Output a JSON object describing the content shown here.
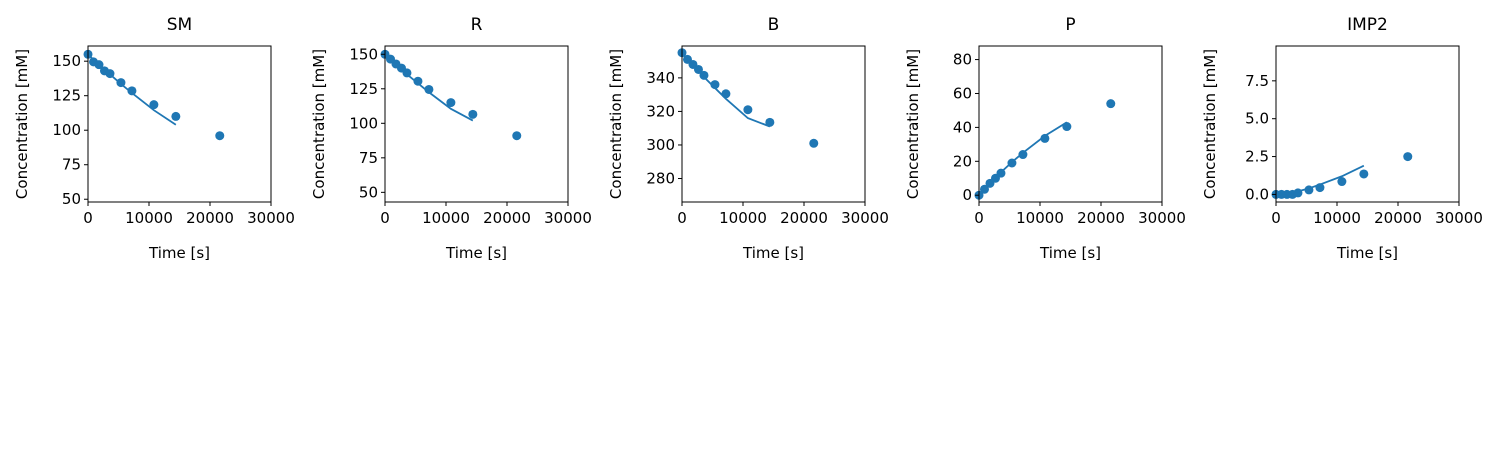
{
  "chart_data": [
    {
      "type": "scatter",
      "title": "SM",
      "xlabel": "Time [s]",
      "ylabel": "Concentration [mM]",
      "xlim": [
        0,
        30000
      ],
      "ylim": [
        48,
        161
      ],
      "xticks": [
        0,
        10000,
        20000,
        30000
      ],
      "yticks": [
        50,
        75,
        100,
        125,
        150
      ],
      "grid": false,
      "series": [
        {
          "kind": "points",
          "color": "#1f77b4",
          "x": [
            0,
            900,
            1800,
            2700,
            3600,
            5400,
            7200,
            10800,
            14400,
            21600
          ],
          "y": [
            155,
            149.5,
            147.5,
            143,
            141,
            134.5,
            128.5,
            118.5,
            110,
            96
          ]
        },
        {
          "kind": "line",
          "color": "#1f77b4",
          "x": [
            0,
            900,
            1800,
            2700,
            3600,
            5400,
            7200,
            10800,
            14400
          ],
          "y": [
            155,
            151,
            147.5,
            144,
            140.5,
            133.5,
            127,
            114.5,
            104
          ]
        }
      ]
    },
    {
      "type": "scatter",
      "title": "R",
      "xlabel": "Time [s]",
      "ylabel": "Concentration [mM]",
      "xlim": [
        0,
        30000
      ],
      "ylim": [
        43,
        156
      ],
      "xticks": [
        0,
        10000,
        20000,
        30000
      ],
      "yticks": [
        50,
        75,
        100,
        125,
        150
      ],
      "grid": false,
      "series": [
        {
          "kind": "points",
          "color": "#1f77b4",
          "x": [
            0,
            900,
            1800,
            2700,
            3600,
            5400,
            7200,
            10800,
            14400,
            21600
          ],
          "y": [
            150,
            146.5,
            143,
            140,
            136.5,
            130.5,
            124.5,
            115,
            106.5,
            91
          ]
        },
        {
          "kind": "line",
          "color": "#1f77b4",
          "x": [
            0,
            900,
            1800,
            2700,
            3600,
            5400,
            7200,
            10800,
            14400
          ],
          "y": [
            150,
            146,
            142.5,
            139,
            135.5,
            129,
            122.5,
            110.5,
            102
          ]
        }
      ]
    },
    {
      "type": "scatter",
      "title": "B",
      "xlabel": "Time [s]",
      "ylabel": "Concentration [mM]",
      "xlim": [
        0,
        30000
      ],
      "ylim": [
        266,
        359
      ],
      "xticks": [
        0,
        10000,
        20000,
        30000
      ],
      "yticks": [
        280,
        300,
        320,
        340
      ],
      "grid": false,
      "series": [
        {
          "kind": "points",
          "color": "#1f77b4",
          "x": [
            0,
            900,
            1800,
            2700,
            3600,
            5400,
            7200,
            10800,
            14400,
            21600
          ],
          "y": [
            355,
            351,
            348,
            345,
            341.5,
            336,
            330.5,
            321,
            313.5,
            301
          ]
        },
        {
          "kind": "line",
          "color": "#1f77b4",
          "x": [
            0,
            900,
            1800,
            2700,
            3600,
            5400,
            7200,
            10800,
            14400
          ],
          "y": [
            355,
            351,
            347.5,
            344,
            340.5,
            334,
            327.5,
            316,
            311
          ]
        }
      ]
    },
    {
      "type": "scatter",
      "title": "P",
      "xlabel": "Time [s]",
      "ylabel": "Concentration [mM]",
      "xlim": [
        0,
        30000
      ],
      "ylim": [
        -4,
        88
      ],
      "xticks": [
        0,
        10000,
        20000,
        30000
      ],
      "yticks": [
        0,
        20,
        40,
        60,
        80
      ],
      "grid": false,
      "series": [
        {
          "kind": "points",
          "color": "#1f77b4",
          "x": [
            0,
            900,
            1800,
            2700,
            3600,
            5400,
            7200,
            10800,
            14400,
            21600
          ],
          "y": [
            0,
            3.5,
            7,
            10,
            13,
            19,
            24,
            33.5,
            40.5,
            54
          ]
        },
        {
          "kind": "line",
          "color": "#1f77b4",
          "x": [
            0,
            900,
            1800,
            2700,
            3600,
            5400,
            7200,
            10800,
            14400
          ],
          "y": [
            0,
            4,
            7.5,
            10.5,
            13.5,
            19.5,
            25,
            35,
            43
          ]
        }
      ]
    },
    {
      "type": "scatter",
      "title": "IMP2",
      "xlabel": "Time [s]",
      "ylabel": "Concentration [mM]",
      "xlim": [
        0,
        30000
      ],
      "ylim": [
        -0.5,
        9.8
      ],
      "xticks": [
        0,
        10000,
        20000,
        30000
      ],
      "yticks": [
        0.0,
        2.5,
        5.0,
        7.5
      ],
      "grid": false,
      "series": [
        {
          "kind": "points",
          "color": "#1f77b4",
          "x": [
            0,
            900,
            1800,
            2700,
            3600,
            5400,
            7200,
            10800,
            14400,
            21600
          ],
          "y": [
            0,
            0,
            0,
            0,
            0.1,
            0.3,
            0.45,
            0.85,
            1.35,
            2.5
          ]
        },
        {
          "kind": "line",
          "color": "#1f77b4",
          "x": [
            0,
            900,
            1800,
            2700,
            3600,
            5400,
            7200,
            10800,
            14400
          ],
          "y": [
            0,
            0.02,
            0.06,
            0.12,
            0.2,
            0.4,
            0.65,
            1.2,
            1.9
          ]
        }
      ]
    }
  ]
}
